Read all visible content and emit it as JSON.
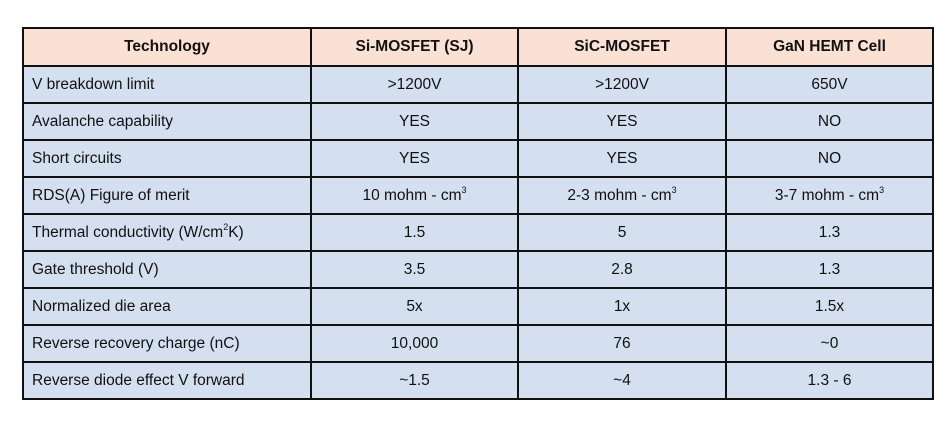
{
  "table": {
    "headers": [
      "Technology",
      "Si-MOSFET (SJ)",
      "SiC-MOSFET",
      "GaN HEMT Cell"
    ],
    "colors": {
      "header_bg": "#fbe0d4",
      "row_bg": "#d4dff0",
      "border": "#111111"
    },
    "rows": [
      {
        "label": "V breakdown limit",
        "si": ">1200V",
        "sic": ">1200V",
        "gan": "650V"
      },
      {
        "label": "Avalanche capability",
        "si": "YES",
        "sic": "YES",
        "gan": "NO"
      },
      {
        "label": "Short circuits",
        "si": "YES",
        "sic": "YES",
        "gan": "NO"
      },
      {
        "label": "RDS(A) Figure of merit",
        "si": "10 mohm - cm",
        "si_sup": "3",
        "sic": "2-3 mohm - cm",
        "sic_sup": "3",
        "gan": "3-7 mohm - cm",
        "gan_sup": "3"
      },
      {
        "label": "Thermal conductivity (W/cm",
        "label_sup": "2",
        "label_tail": "K)",
        "si": "1.5",
        "sic": "5",
        "gan": "1.3"
      },
      {
        "label": "Gate threshold (V)",
        "si": "3.5",
        "sic": "2.8",
        "gan": "1.3"
      },
      {
        "label": "Normalized die area",
        "si": "5x",
        "sic": "1x",
        "gan": "1.5x"
      },
      {
        "label": "Reverse recovery charge (nC)",
        "si": "10,000",
        "sic": "76",
        "gan": "~0"
      },
      {
        "label": "Reverse diode effect V forward",
        "si": "~1.5",
        "sic": "~4",
        "gan": "1.3 - 6"
      }
    ]
  }
}
